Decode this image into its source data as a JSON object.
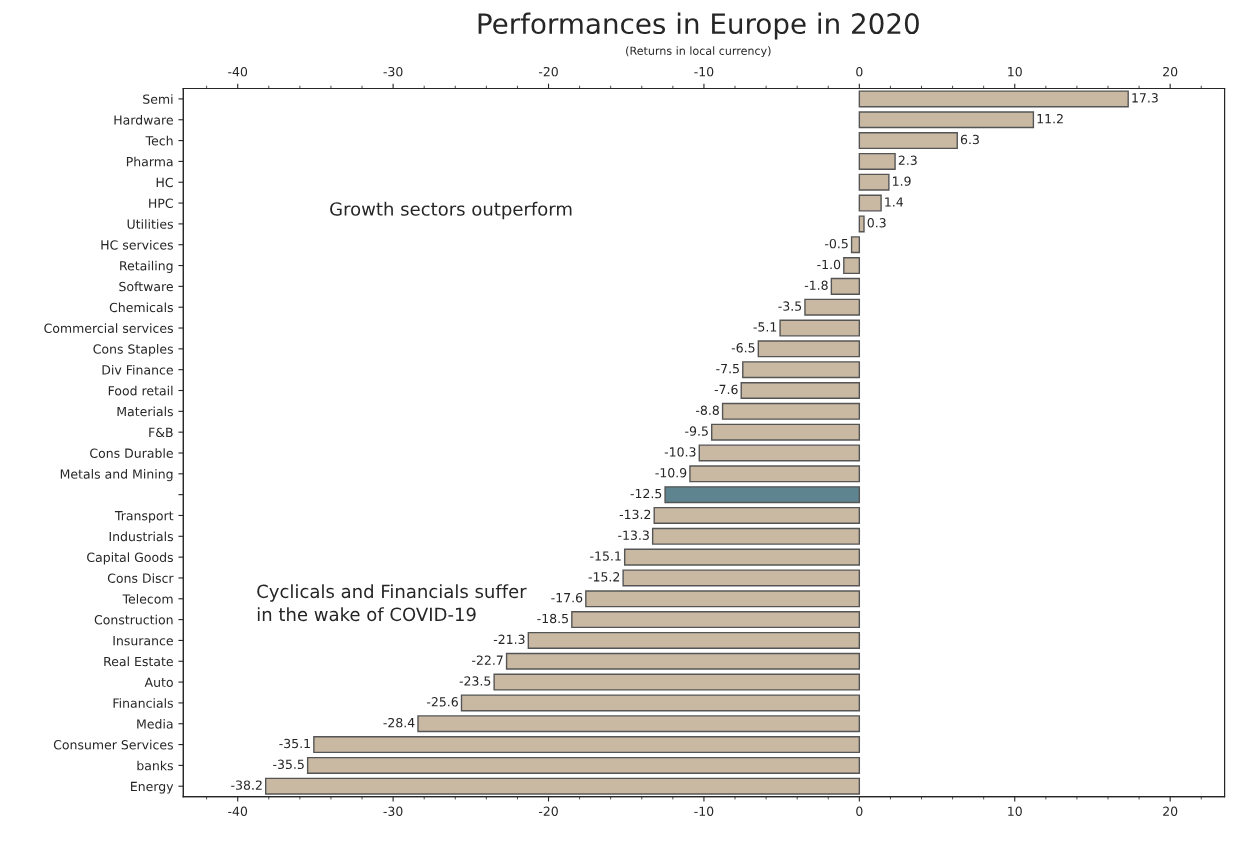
{
  "chart_data": {
    "type": "bar",
    "orientation": "horizontal",
    "title": "Performances in Europe in 2020",
    "subtitle": "(Returns in local currency)",
    "categories": [
      "Semi",
      "Hardware",
      "Tech",
      "Pharma",
      "HC",
      "HPC",
      "Utilities",
      "HC services",
      "Retailing",
      "Software",
      "Chemicals",
      "Commercial services",
      "Cons Staples",
      "Div Finance",
      "Food retail",
      "Materials",
      "F&B",
      "Cons Durable",
      "Metals and Mining",
      null,
      "Transport",
      "Industrials",
      "Capital Goods",
      "Cons Discr",
      "Telecom",
      "Construction",
      "Insurance",
      "Real Estate",
      "Auto",
      "Financials",
      "Media",
      "Consumer Services",
      "banks",
      "Energy"
    ],
    "values": [
      17.3,
      11.2,
      6.3,
      2.3,
      1.9,
      1.4,
      0.3,
      -0.5,
      -1.0,
      -1.8,
      -3.5,
      -5.1,
      -6.5,
      -7.5,
      -7.6,
      -8.8,
      -9.5,
      -10.3,
      -10.9,
      -12.5,
      -13.2,
      -13.3,
      -15.1,
      -15.2,
      -17.6,
      -18.5,
      -21.3,
      -22.7,
      -23.5,
      -25.6,
      -28.4,
      -35.1,
      -35.5,
      -38.2
    ],
    "colors": [
      "#c9b9a3",
      "#c9b9a3",
      "#c9b9a3",
      "#c9b9a3",
      "#c9b9a3",
      "#c9b9a3",
      "#c9b9a3",
      "#c9b9a3",
      "#c9b9a3",
      "#c9b9a3",
      "#c9b9a3",
      "#c9b9a3",
      "#c9b9a3",
      "#c9b9a3",
      "#c9b9a3",
      "#c9b9a3",
      "#c9b9a3",
      "#c9b9a3",
      "#c9b9a3",
      "#5e8490",
      "#c9b9a3",
      "#c9b9a3",
      "#c9b9a3",
      "#c9b9a3",
      "#c9b9a3",
      "#c9b9a3",
      "#c9b9a3",
      "#c9b9a3",
      "#c9b9a3",
      "#c9b9a3",
      "#c9b9a3",
      "#c9b9a3",
      "#c9b9a3",
      "#c9b9a3"
    ],
    "xlim": [
      -43.5,
      23.5
    ],
    "xticks": [
      -40,
      -30,
      -20,
      -10,
      0,
      10,
      20
    ],
    "x2lim": [
      -43.5,
      23.5
    ],
    "x2ticks": [
      -40,
      -30,
      -20,
      -10,
      0,
      10,
      20
    ],
    "value_labels": [
      "17.3",
      "11.2",
      "6.3",
      "2.3",
      "1.9",
      "1.4",
      "0.3",
      "-0.5",
      "-1.0",
      "-1.8",
      "-3.5",
      "-5.1",
      "-6.5",
      "-7.5",
      "-7.6",
      "-8.8",
      "-9.5",
      "-10.3",
      "-10.9",
      "-12.5",
      "-13.2",
      "-13.3",
      "-15.1",
      "-15.2",
      "-17.6",
      "-18.5",
      "-21.3",
      "-22.7",
      "-23.5",
      "-25.6",
      "-28.4",
      "-35.1",
      "-35.5",
      "-38.2"
    ],
    "annotations": [
      "Growth sectors outperform",
      "Cyclicals and Financials suffer\nin the wake of COVID-19"
    ]
  }
}
